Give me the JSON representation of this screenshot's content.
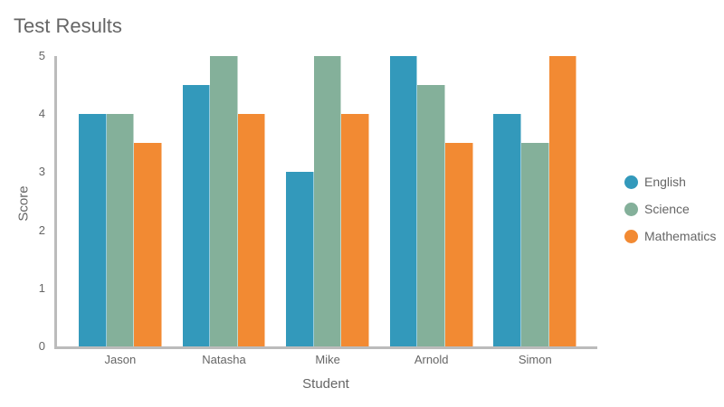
{
  "chart_data": {
    "type": "bar",
    "title": "Test Results",
    "xlabel": "Student",
    "ylabel": "Score",
    "ylim": [
      0,
      5
    ],
    "yticks": [
      0,
      1,
      2,
      3,
      4,
      5
    ],
    "grid": false,
    "legend_position": "right",
    "categories": [
      "Jason",
      "Natasha",
      "Mike",
      "Arnold",
      "Simon"
    ],
    "series": [
      {
        "name": "English",
        "color": "#3399bb",
        "values": [
          4,
          4.5,
          3,
          5,
          4
        ]
      },
      {
        "name": "Science",
        "color": "#84b09a",
        "values": [
          4,
          5,
          5,
          4.5,
          3.5
        ]
      },
      {
        "name": "Mathematics",
        "color": "#f28a33",
        "values": [
          3.5,
          4,
          4,
          3.5,
          5
        ]
      }
    ]
  }
}
